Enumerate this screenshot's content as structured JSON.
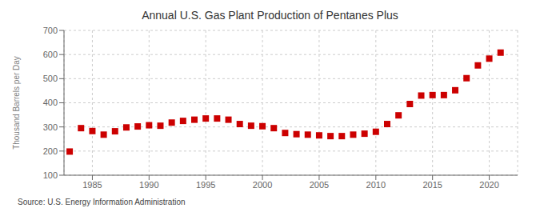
{
  "chart_data": {
    "type": "scatter",
    "title": "Annual U.S. Gas Plant Production of Pentanes Plus",
    "ylabel": "Thousand Barrels per Day",
    "annotation": "Source: U.S. Energy Information Administration",
    "x": [
      1983,
      1984,
      1985,
      1986,
      1987,
      1988,
      1989,
      1990,
      1991,
      1992,
      1993,
      1994,
      1995,
      1996,
      1997,
      1998,
      1999,
      2000,
      2001,
      2002,
      2003,
      2004,
      2005,
      2006,
      2007,
      2008,
      2009,
      2010,
      2011,
      2012,
      2013,
      2014,
      2015,
      2016,
      2017,
      2018,
      2019,
      2020,
      2021
    ],
    "values": [
      198,
      295,
      283,
      268,
      282,
      298,
      302,
      307,
      305,
      318,
      325,
      330,
      335,
      335,
      330,
      312,
      305,
      303,
      295,
      275,
      270,
      268,
      265,
      262,
      262,
      268,
      272,
      280,
      312,
      348,
      395,
      430,
      432,
      432,
      452,
      502,
      555,
      583,
      608
    ],
    "color": "#cc0000",
    "marker": "square",
    "xlim": [
      1982.5,
      2022.5
    ],
    "ylim": [
      100,
      700
    ],
    "xticks": [
      1985,
      1990,
      1995,
      2000,
      2005,
      2010,
      2015,
      2020
    ],
    "yticks": [
      100,
      200,
      300,
      400,
      500,
      600,
      700
    ],
    "grid": true
  }
}
